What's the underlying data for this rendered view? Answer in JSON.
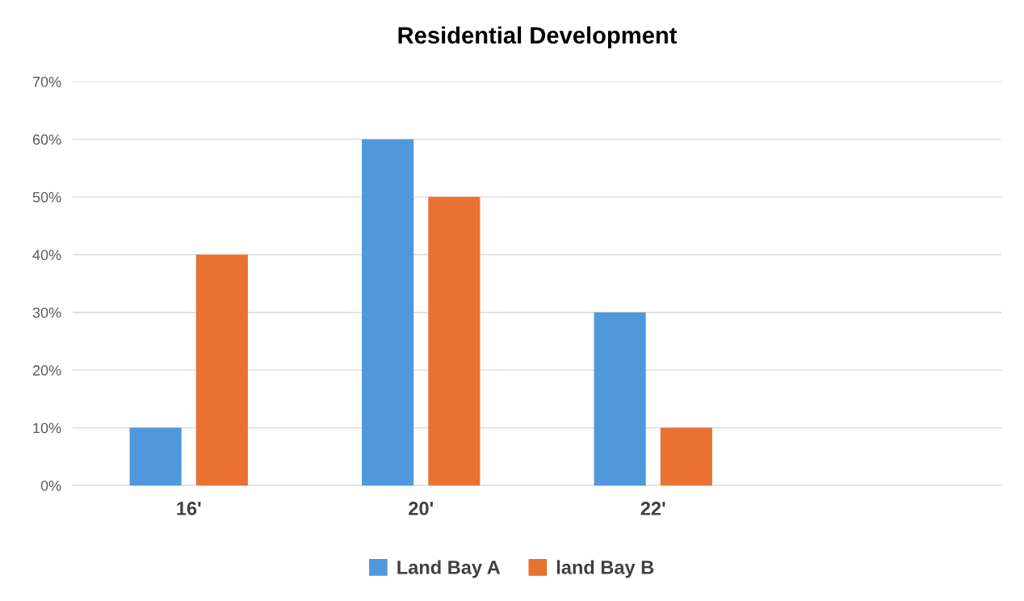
{
  "chart_data": {
    "type": "bar",
    "title": "Residential Development",
    "categories": [
      "16'",
      "20'",
      "22'",
      null
    ],
    "series": [
      {
        "name": "Land Bay A",
        "color": "#5097db",
        "values": [
          10,
          60,
          30,
          null
        ]
      },
      {
        "name": "land Bay B",
        "color": "#e97132",
        "values": [
          40,
          50,
          10,
          null
        ]
      }
    ],
    "ylim": [
      0,
      70
    ],
    "yticks": [
      {
        "value": 0,
        "label": "0%"
      },
      {
        "value": 10,
        "label": "10%"
      },
      {
        "value": 20,
        "label": "20%"
      },
      {
        "value": 30,
        "label": "30%"
      },
      {
        "value": 40,
        "label": "40%"
      },
      {
        "value": 50,
        "label": "50%"
      },
      {
        "value": 60,
        "label": "60%"
      },
      {
        "value": 70,
        "label": "70%"
      }
    ],
    "grid": "y",
    "legend": "bottom"
  }
}
